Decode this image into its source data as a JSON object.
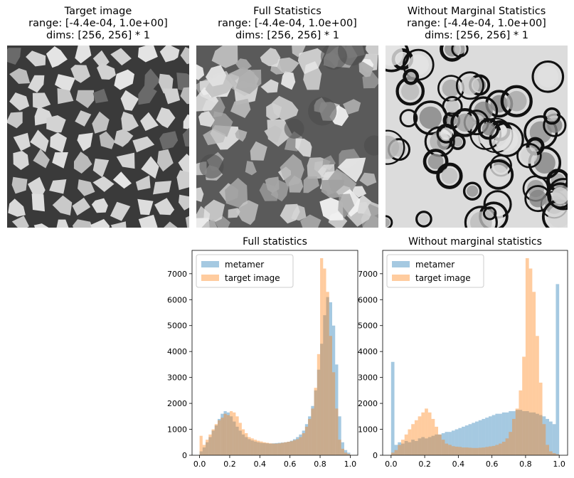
{
  "images": [
    {
      "title_line1": "Target image",
      "title_line2": "range: [-4.4e-04, 1.0e+00]",
      "title_line3": "dims: [256, 256] * 1",
      "texture": "mosaic-tiles"
    },
    {
      "title_line1": "Full Statistics",
      "title_line2": "range: [-4.4e-04, 1.0e+00]",
      "title_line3": "dims: [256, 256] * 1",
      "texture": "synthesized-mosaic"
    },
    {
      "title_line1": "Without Marginal Statistics",
      "title_line2": "range: [-4.4e-04, 1.0e+00]",
      "title_line3": "dims: [256, 256] * 1",
      "texture": "synthesized-blobs"
    }
  ],
  "chart_data": [
    {
      "type": "bar",
      "title": "Full statistics",
      "xlabel": "",
      "ylabel": "",
      "xlim": [
        -0.05,
        1.05
      ],
      "ylim": [
        0,
        7900
      ],
      "xticks": [
        "0.0",
        "0.2",
        "0.4",
        "0.6",
        "0.8",
        "1.0"
      ],
      "yticks": [
        "0",
        "1000",
        "2000",
        "3000",
        "4000",
        "5000",
        "6000",
        "7000"
      ],
      "legend": "top-left",
      "bin_width": 0.02,
      "x": [
        0.0,
        0.02,
        0.04,
        0.06,
        0.08,
        0.1,
        0.12,
        0.14,
        0.16,
        0.18,
        0.2,
        0.22,
        0.24,
        0.26,
        0.28,
        0.3,
        0.32,
        0.34,
        0.36,
        0.38,
        0.4,
        0.42,
        0.44,
        0.46,
        0.48,
        0.5,
        0.52,
        0.54,
        0.56,
        0.58,
        0.6,
        0.62,
        0.64,
        0.66,
        0.68,
        0.7,
        0.72,
        0.74,
        0.76,
        0.78,
        0.8,
        0.82,
        0.84,
        0.86,
        0.88,
        0.9,
        0.92,
        0.94,
        0.96,
        0.98
      ],
      "series": [
        {
          "name": "metamer",
          "color": "#1f77b4",
          "values": [
            150,
            300,
            500,
            700,
            950,
            1150,
            1400,
            1600,
            1700,
            1650,
            1500,
            1300,
            1100,
            950,
            800,
            700,
            620,
            570,
            530,
            500,
            480,
            470,
            460,
            450,
            460,
            470,
            480,
            490,
            500,
            520,
            560,
            620,
            700,
            800,
            950,
            1200,
            1500,
            1900,
            2500,
            3300,
            4300,
            5400,
            6100,
            5900,
            5000,
            3500,
            1500,
            500,
            200,
            100
          ]
        },
        {
          "name": "target image",
          "color": "#ff7f0e",
          "values": [
            750,
            400,
            600,
            800,
            1000,
            1200,
            1350,
            1450,
            1600,
            1550,
            1700,
            1650,
            1500,
            1250,
            1000,
            850,
            700,
            650,
            600,
            560,
            530,
            500,
            480,
            460,
            450,
            450,
            460,
            480,
            500,
            520,
            540,
            580,
            620,
            700,
            850,
            1100,
            1400,
            1800,
            2600,
            3900,
            7600,
            7200,
            6300,
            4600,
            3200,
            1800,
            600,
            250,
            100,
            50
          ]
        }
      ]
    },
    {
      "type": "bar",
      "title": "Without marginal statistics",
      "xlabel": "",
      "ylabel": "",
      "xlim": [
        -0.05,
        1.05
      ],
      "ylim": [
        0,
        7900
      ],
      "xticks": [
        "0.0",
        "0.2",
        "0.4",
        "0.6",
        "0.8",
        "1.0"
      ],
      "yticks": [
        "0",
        "1000",
        "2000",
        "3000",
        "4000",
        "5000",
        "6000",
        "7000"
      ],
      "legend": "top-left",
      "bin_width": 0.02,
      "x": [
        0.0,
        0.02,
        0.04,
        0.06,
        0.08,
        0.1,
        0.12,
        0.14,
        0.16,
        0.18,
        0.2,
        0.22,
        0.24,
        0.26,
        0.28,
        0.3,
        0.32,
        0.34,
        0.36,
        0.38,
        0.4,
        0.42,
        0.44,
        0.46,
        0.48,
        0.5,
        0.52,
        0.54,
        0.56,
        0.58,
        0.6,
        0.62,
        0.64,
        0.66,
        0.68,
        0.7,
        0.72,
        0.74,
        0.76,
        0.78,
        0.8,
        0.82,
        0.84,
        0.86,
        0.88,
        0.9,
        0.92,
        0.94,
        0.96,
        0.98
      ],
      "series": [
        {
          "name": "metamer",
          "color": "#1f77b4",
          "values": [
            3600,
            400,
            500,
            450,
            550,
            500,
            600,
            550,
            650,
            700,
            650,
            700,
            750,
            800,
            800,
            850,
            900,
            900,
            950,
            1000,
            1050,
            1100,
            1150,
            1200,
            1250,
            1300,
            1350,
            1400,
            1450,
            1500,
            1550,
            1600,
            1600,
            1650,
            1650,
            1700,
            1700,
            1750,
            1750,
            1700,
            1700,
            1650,
            1650,
            1600,
            1550,
            1500,
            1400,
            1300,
            1200,
            6600
          ]
        },
        {
          "name": "target image",
          "color": "#ff7f0e",
          "values": [
            100,
            200,
            400,
            600,
            800,
            1000,
            1200,
            1350,
            1500,
            1650,
            1800,
            1650,
            1400,
            1100,
            800,
            600,
            450,
            400,
            350,
            330,
            320,
            300,
            300,
            290,
            280,
            280,
            290,
            300,
            320,
            340,
            360,
            400,
            450,
            520,
            650,
            900,
            1400,
            1800,
            2500,
            3800,
            7600,
            7200,
            6300,
            4600,
            2800,
            1200,
            400,
            150,
            80,
            40
          ]
        }
      ]
    }
  ]
}
